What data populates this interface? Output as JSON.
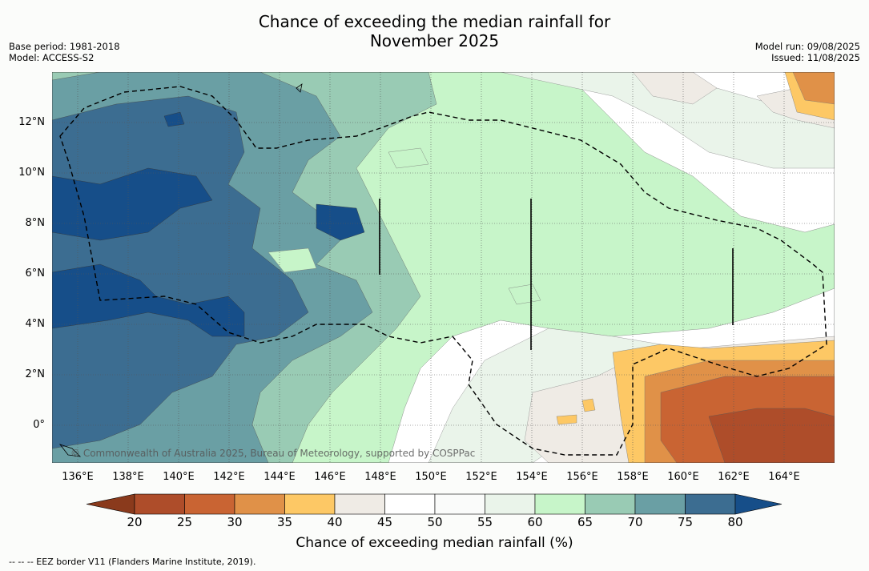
{
  "title_line1": "Chance of exceeding the median rainfall for",
  "title_line2": "November 2025",
  "base_period": "Base period: 1981-2018",
  "model": "Model: ACCESS-S2",
  "model_run": "Model run: 09/08/2025",
  "issued": "Issued: 11/08/2025",
  "copyright": "© Commonwealth of Australia 2025, Bureau of Meteorology, supported by COSPPac",
  "lat_labels": [
    "12°N",
    "10°N",
    "8°N",
    "6°N",
    "4°N",
    "2°N",
    "0°"
  ],
  "lon_labels": [
    "136°E",
    "138°E",
    "140°E",
    "142°E",
    "144°E",
    "146°E",
    "148°E",
    "150°E",
    "152°E",
    "154°E",
    "156°E",
    "158°E",
    "160°E",
    "162°E",
    "164°E"
  ],
  "colorbar": {
    "title": "Chance of exceeding median rainfall (%)",
    "ticks": [
      "20",
      "25",
      "30",
      "35",
      "40",
      "45",
      "50",
      "55",
      "60",
      "65",
      "70",
      "75",
      "80"
    ],
    "colors": [
      "#8a3a1c",
      "#ae4d2a",
      "#c96433",
      "#e09148",
      "#fdc865",
      "#efebe5",
      "#ffffff",
      "#fafbfa",
      "#eaf4ea",
      "#c7f5c9",
      "#99cbb4",
      "#6a9fa4",
      "#3c6d91",
      "#164e89"
    ]
  },
  "footnote": "--  --  -- EEZ border V11 (Flanders Marine Institute, 2019)."
}
